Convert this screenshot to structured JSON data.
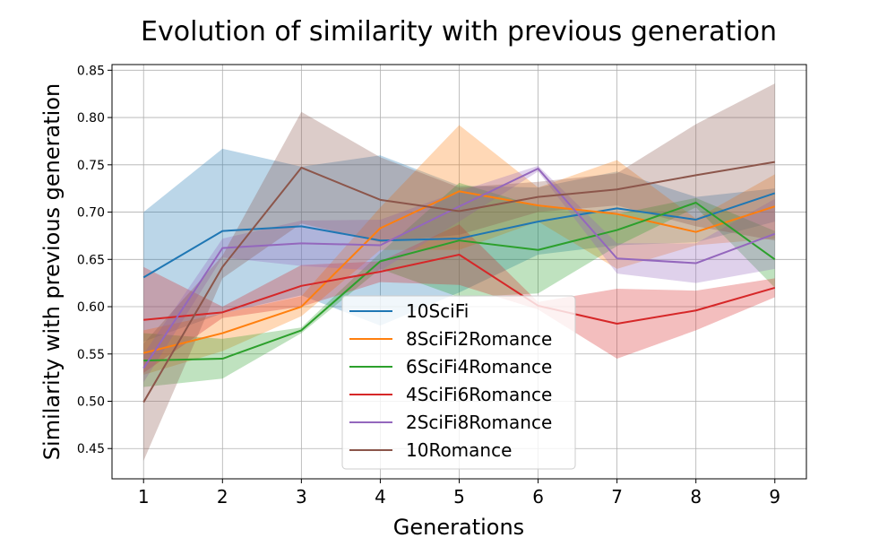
{
  "chart_data": {
    "type": "line",
    "title": "Evolution of similarity with previous generation",
    "xlabel": "Generations",
    "ylabel": "Similarity with previous generation",
    "x": [
      1,
      2,
      3,
      4,
      5,
      6,
      7,
      8,
      9
    ],
    "xlim": [
      0.6,
      9.4
    ],
    "ylim": [
      0.418,
      0.856
    ],
    "yticks": [
      0.45,
      0.5,
      0.55,
      0.6,
      0.65,
      0.7,
      0.75,
      0.8,
      0.85
    ],
    "ytick_labels": [
      "0.45",
      "0.50",
      "0.55",
      "0.60",
      "0.65",
      "0.70",
      "0.75",
      "0.80",
      "0.85"
    ],
    "xticks": [
      1,
      2,
      3,
      4,
      5,
      6,
      7,
      8,
      9
    ],
    "xtick_labels": [
      "1",
      "2",
      "3",
      "4",
      "5",
      "6",
      "7",
      "8",
      "9"
    ],
    "grid": true,
    "legend_position": "bottom-center",
    "band_opacity": 0.3,
    "series": [
      {
        "name": "10SciFi",
        "color": "#1f77b4",
        "values": [
          0.631,
          0.68,
          0.685,
          0.67,
          0.672,
          0.69,
          0.704,
          0.692,
          0.72
        ],
        "lower": [
          0.563,
          0.593,
          0.612,
          0.58,
          0.615,
          0.655,
          0.665,
          0.668,
          0.69
        ],
        "upper": [
          0.7,
          0.767,
          0.748,
          0.76,
          0.728,
          0.726,
          0.743,
          0.716,
          0.725
        ]
      },
      {
        "name": "8SciFi2Romance",
        "color": "#ff7f0e",
        "values": [
          0.551,
          0.572,
          0.6,
          0.683,
          0.722,
          0.707,
          0.698,
          0.679,
          0.706
        ],
        "lower": [
          0.528,
          0.553,
          0.59,
          0.66,
          0.66,
          0.69,
          0.64,
          0.665,
          0.672
        ],
        "upper": [
          0.575,
          0.593,
          0.611,
          0.705,
          0.792,
          0.726,
          0.755,
          0.693,
          0.74
        ]
      },
      {
        "name": "6SciFi4Romance",
        "color": "#2ca02c",
        "values": [
          0.543,
          0.545,
          0.575,
          0.648,
          0.67,
          0.66,
          0.681,
          0.71,
          0.65
        ],
        "lower": [
          0.515,
          0.524,
          0.572,
          0.64,
          0.61,
          0.614,
          0.664,
          0.705,
          0.62
        ],
        "upper": [
          0.572,
          0.566,
          0.578,
          0.657,
          0.731,
          0.706,
          0.698,
          0.715,
          0.68
        ]
      },
      {
        "name": "4SciFi6Romance",
        "color": "#d62728",
        "values": [
          0.586,
          0.594,
          0.622,
          0.637,
          0.655,
          0.601,
          0.582,
          0.596,
          0.62
        ],
        "lower": [
          0.53,
          0.588,
          0.6,
          0.626,
          0.623,
          0.597,
          0.545,
          0.575,
          0.61
        ],
        "upper": [
          0.642,
          0.6,
          0.644,
          0.648,
          0.687,
          0.605,
          0.619,
          0.617,
          0.63
        ]
      },
      {
        "name": "2SciFi8Romance",
        "color": "#9467bd",
        "values": [
          0.535,
          0.662,
          0.667,
          0.665,
          0.706,
          0.746,
          0.651,
          0.646,
          0.677
        ],
        "lower": [
          0.52,
          0.652,
          0.643,
          0.638,
          0.69,
          0.743,
          0.635,
          0.625,
          0.64
        ],
        "upper": [
          0.55,
          0.672,
          0.691,
          0.692,
          0.722,
          0.749,
          0.667,
          0.667,
          0.714
        ]
      },
      {
        "name": "10Romance",
        "color": "#8c564b",
        "values": [
          0.499,
          0.642,
          0.747,
          0.713,
          0.701,
          0.716,
          0.724,
          0.739,
          0.753
        ],
        "lower": [
          0.437,
          0.63,
          0.688,
          0.668,
          0.676,
          0.7,
          0.707,
          0.685,
          0.67
        ],
        "upper": [
          0.561,
          0.654,
          0.806,
          0.758,
          0.726,
          0.732,
          0.741,
          0.793,
          0.836
        ]
      }
    ]
  }
}
